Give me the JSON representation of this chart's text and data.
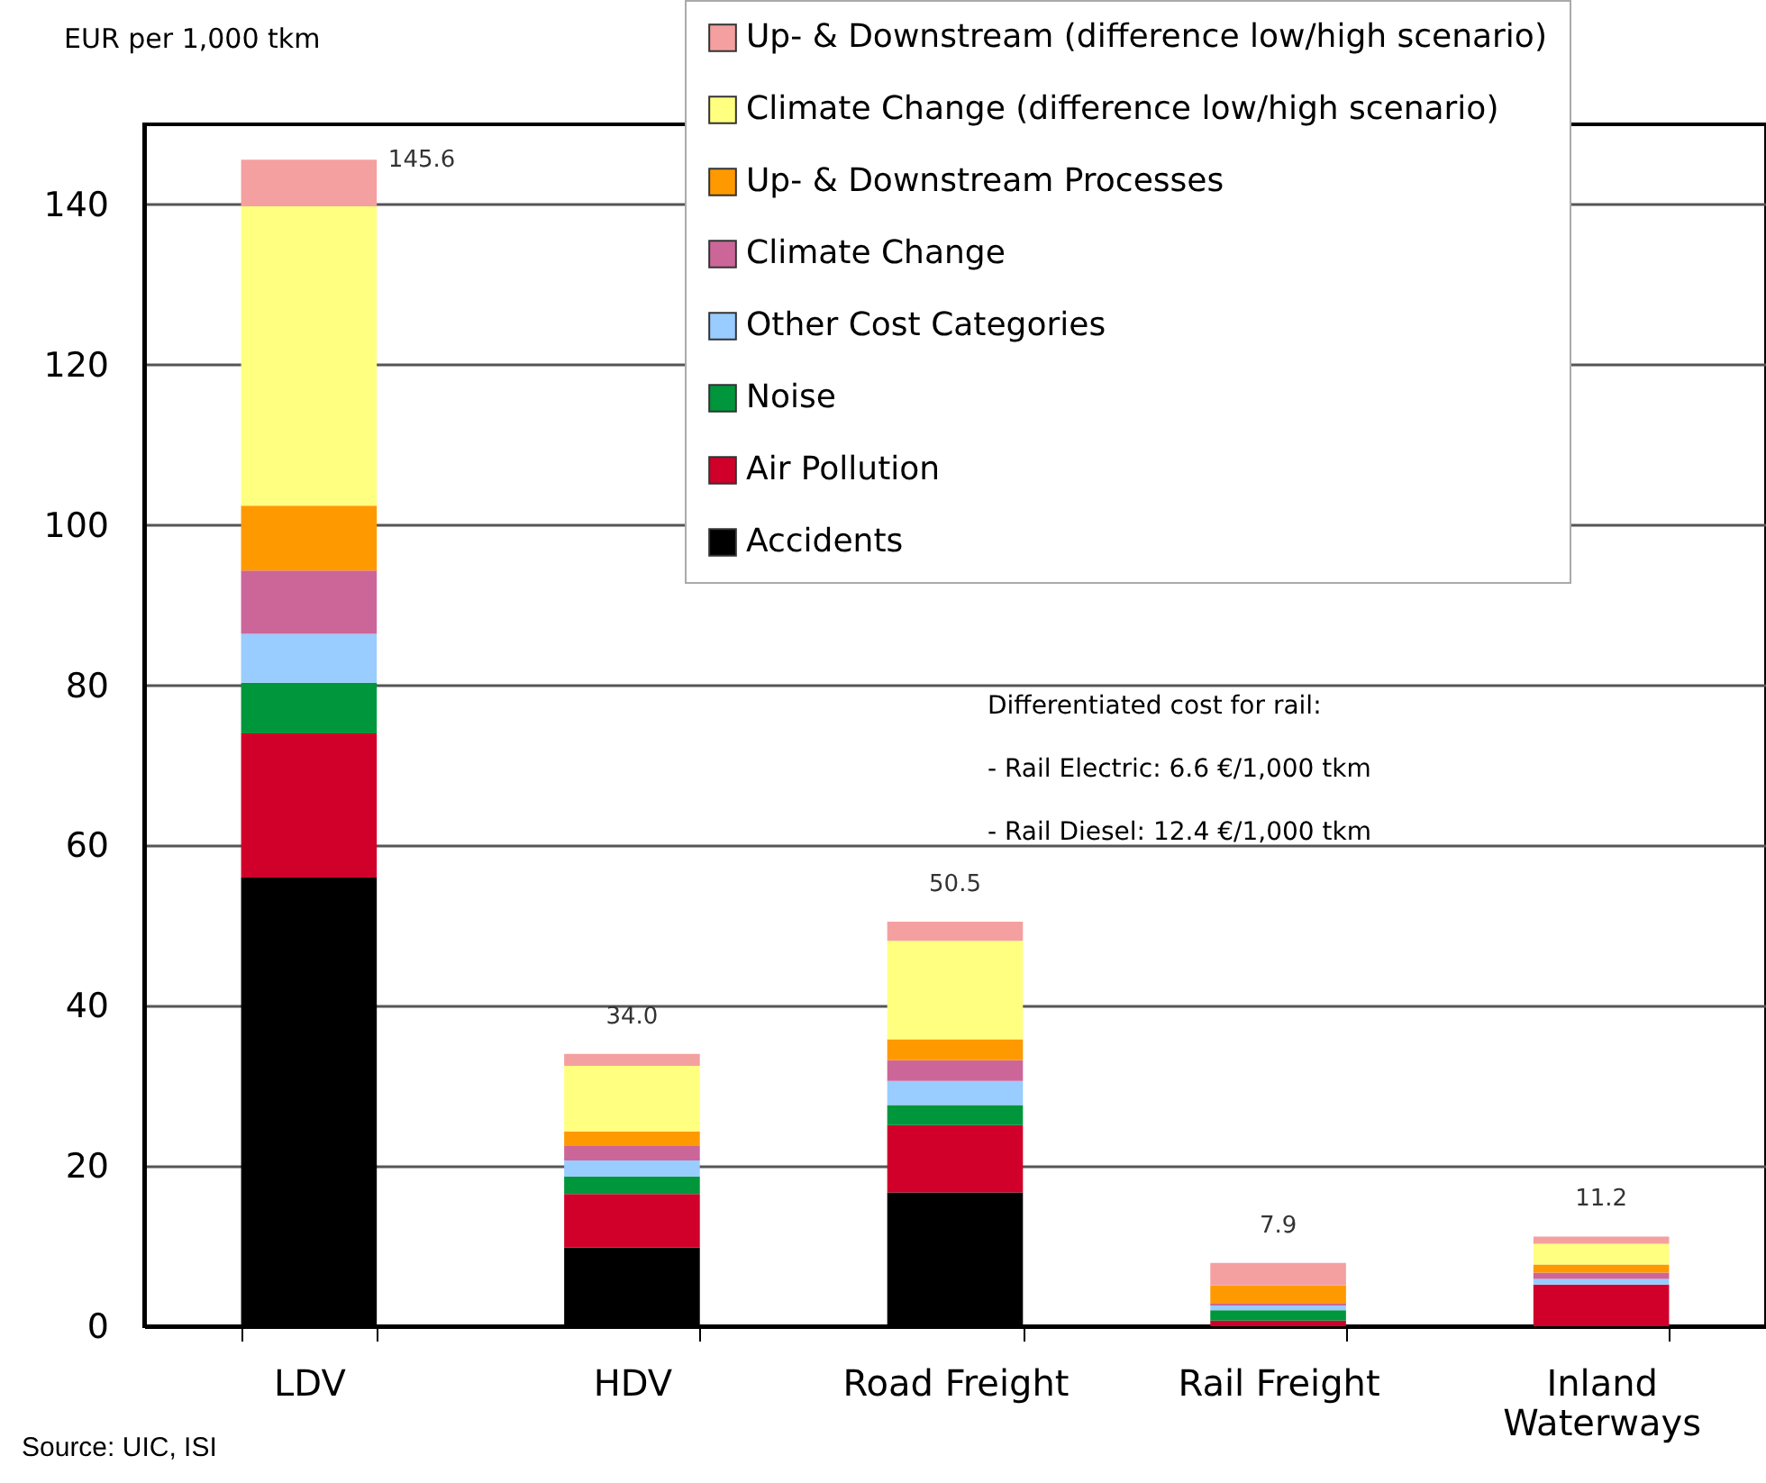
{
  "chart_data": {
    "type": "bar",
    "stacked": true,
    "ylabel": "EUR per 1,000 tkm",
    "categories": [
      "LDV",
      "HDV",
      "Road Freight",
      "Rail Freight",
      "Inland Waterways"
    ],
    "series": [
      {
        "name": "Accidents",
        "color": "#000000",
        "values": [
          56,
          9.8,
          16.7,
          0,
          0
        ]
      },
      {
        "name": "Air Pollution",
        "color": "#d0002a",
        "values": [
          18,
          6.7,
          8.4,
          0.7,
          5.2
        ]
      },
      {
        "name": "Noise",
        "color": "#00963c",
        "values": [
          6.3,
          2.2,
          2.5,
          1.3,
          0
        ]
      },
      {
        "name": "Other Cost Categories",
        "color": "#99ccff",
        "values": [
          6.1,
          2.0,
          3.0,
          0.6,
          0.7
        ]
      },
      {
        "name": "Climate Change",
        "color": "#cc6699",
        "values": [
          7.9,
          1.8,
          2.6,
          0.3,
          0.8
        ]
      },
      {
        "name": "Up- & Downstream Processes",
        "color": "#ff9900",
        "values": [
          8.1,
          1.8,
          2.6,
          2.2,
          1.0
        ]
      },
      {
        "name": "Climate Change (difference low/high scenario)",
        "color": "#ffff80",
        "values": [
          37.4,
          8.2,
          12.3,
          0,
          2.6
        ]
      },
      {
        "name": "Up- & Downstream (difference low/high scenario)",
        "color": "#f4a0a0",
        "values": [
          5.8,
          1.5,
          2.4,
          2.8,
          0.9
        ]
      }
    ],
    "totals": [
      "145.6",
      "34.0",
      "50.5",
      "7.9",
      "11.2"
    ],
    "ylim": [
      0,
      150
    ],
    "yticks": [
      0,
      20,
      40,
      60,
      80,
      100,
      120,
      140
    ],
    "grid": "y",
    "legend": "top right",
    "annotations": [
      "Differentiated cost for rail:",
      "- Rail Electric: 6.6 €/1,000 tkm",
      "- Rail Diesel: 12.4 €/1,000 tkm",
      "Source: UIC, ISI"
    ]
  }
}
